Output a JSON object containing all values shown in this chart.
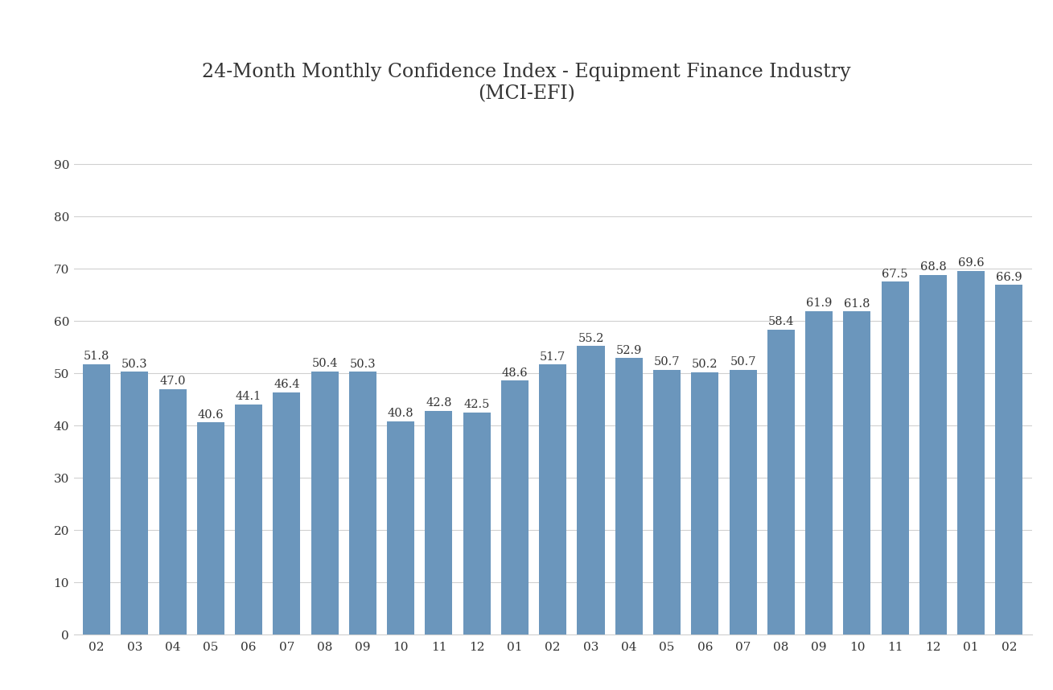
{
  "title": "24-Month Monthly Confidence Index - Equipment Finance Industry\n(MCI-EFI)",
  "categories": [
    "02",
    "03",
    "04",
    "05",
    "06",
    "07",
    "08",
    "09",
    "10",
    "11",
    "12",
    "01",
    "02",
    "03",
    "04",
    "05",
    "06",
    "07",
    "08",
    "09",
    "10",
    "11",
    "12",
    "01",
    "02"
  ],
  "values": [
    51.8,
    50.3,
    47.0,
    40.6,
    44.1,
    46.4,
    50.4,
    50.3,
    40.8,
    42.8,
    42.5,
    48.6,
    51.7,
    55.2,
    52.9,
    50.7,
    50.2,
    50.7,
    58.4,
    61.9,
    61.8,
    67.5,
    68.8,
    69.6,
    66.9
  ],
  "bar_color": "#6b96bc",
  "background_color": "#ffffff",
  "title_fontsize": 17,
  "label_fontsize": 10.5,
  "tick_fontsize": 11,
  "yticks": [
    0,
    10,
    20,
    30,
    40,
    50,
    60,
    70,
    80,
    90
  ],
  "ylim": [
    0,
    95
  ],
  "grid_color": "#d0d0d0",
  "text_color": "#333333",
  "bar_width": 0.72
}
